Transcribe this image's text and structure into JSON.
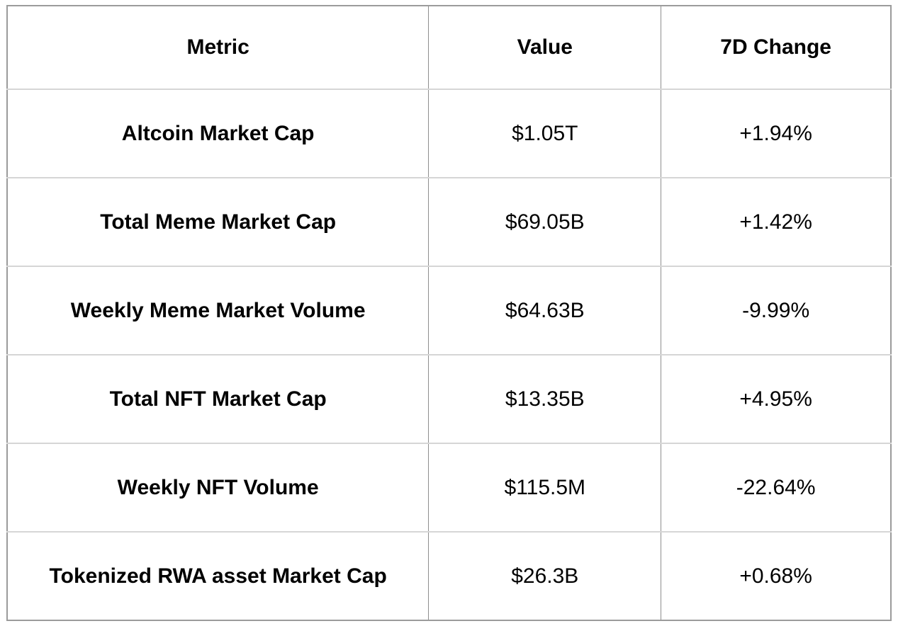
{
  "chart_data": {
    "type": "table",
    "title": "",
    "columns": [
      "Metric",
      "Value",
      "7D Change"
    ],
    "rows": [
      [
        "Altcoin Market Cap",
        "$1.05T",
        "+1.94%"
      ],
      [
        "Total Meme Market Cap",
        "$69.05B",
        "+1.42%"
      ],
      [
        "Weekly Meme Market Volume",
        "$64.63B",
        "-9.99%"
      ],
      [
        "Total NFT Market Cap",
        "$13.35B",
        "+4.95%"
      ],
      [
        "Weekly NFT Volume",
        "$115.5M",
        "-22.64%"
      ],
      [
        "Tokenized RWA asset Market Cap",
        "$26.3B",
        "+0.68%"
      ]
    ],
    "layout": {
      "grid": true,
      "header_bold": true,
      "metric_column_bold": true,
      "text_align": "center"
    },
    "colors": {
      "text": "#000000",
      "background": "#ffffff",
      "outer_border": "#9b9b9b",
      "column_divider": "#8e8e8e",
      "row_divider": "#d6d6d6"
    }
  }
}
